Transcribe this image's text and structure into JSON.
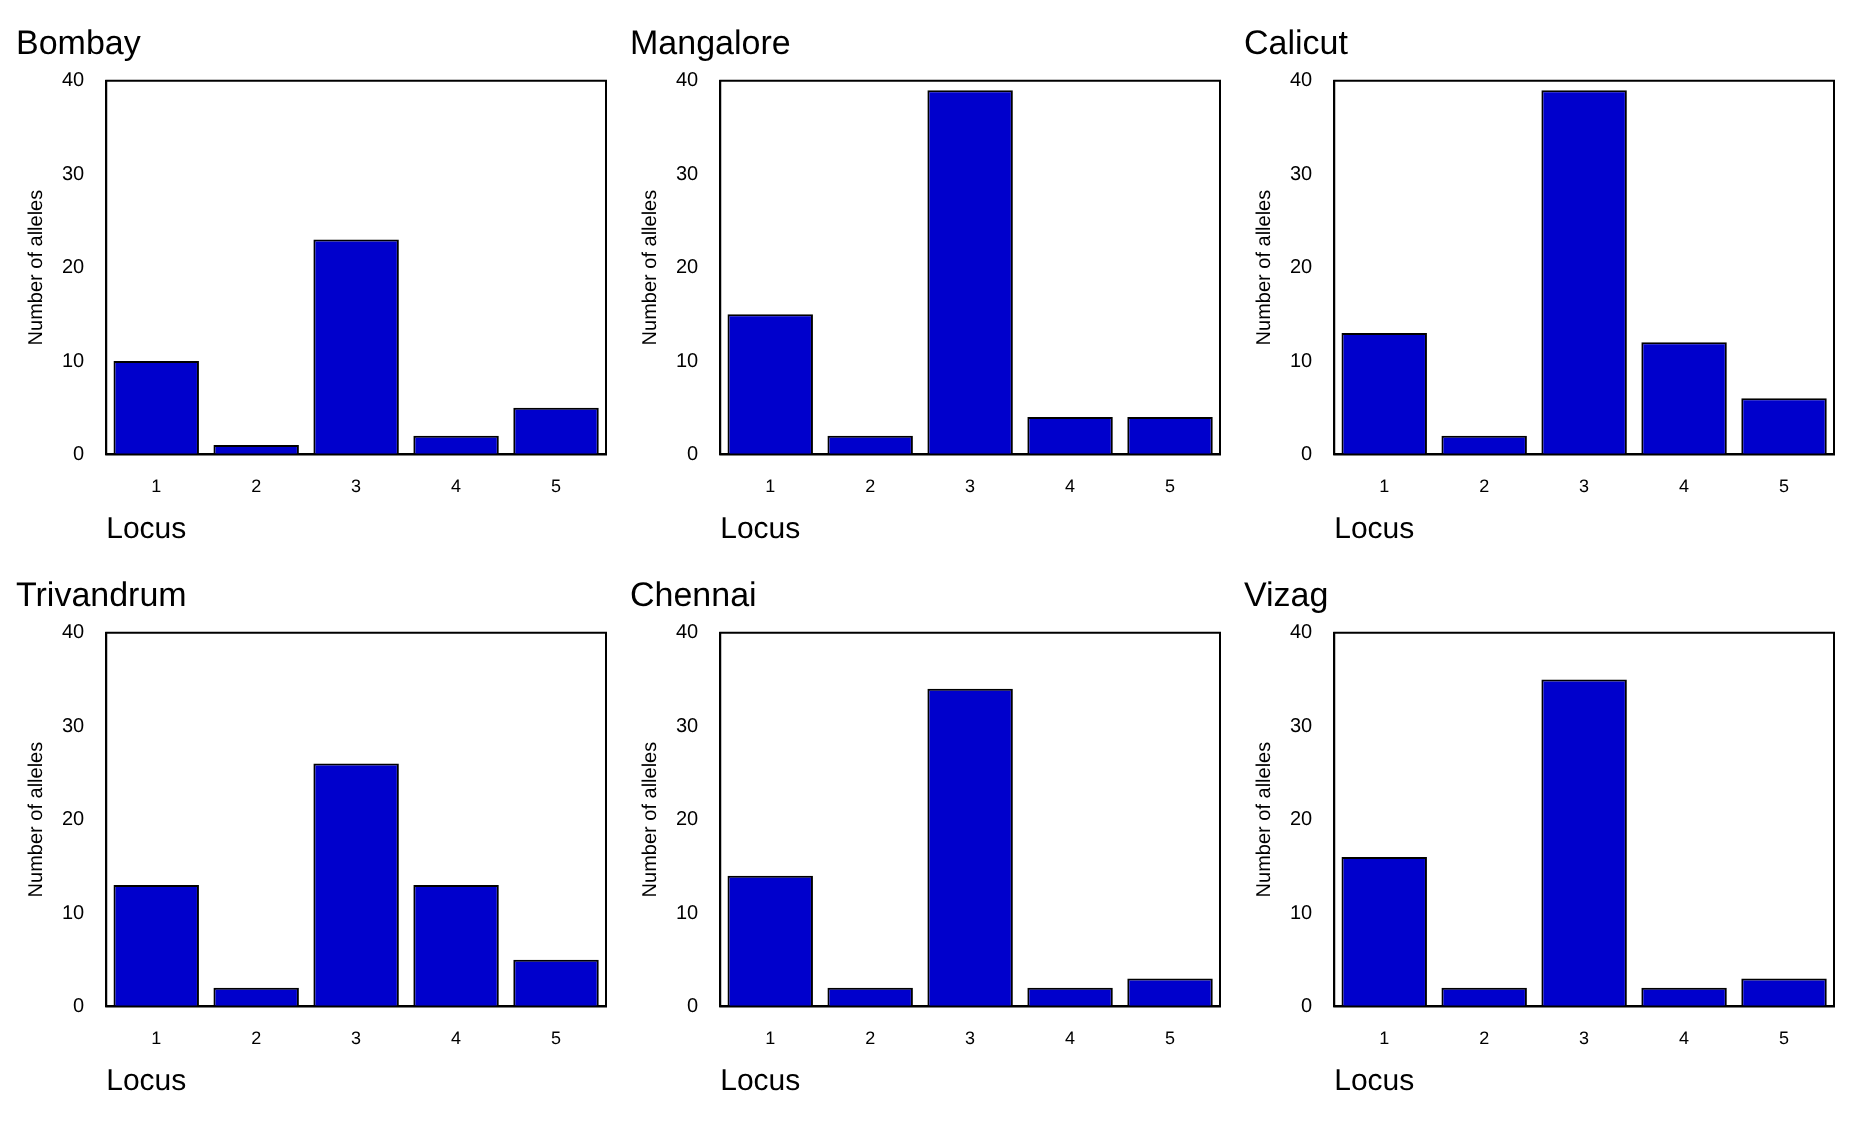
{
  "chart_data": [
    {
      "type": "bar",
      "title": "Bombay",
      "xlabel": "Locus",
      "ylabel": "Number of alleles",
      "categories": [
        "1",
        "2",
        "3",
        "4",
        "5"
      ],
      "values": [
        10,
        1,
        23,
        2,
        5
      ],
      "color": "#0000cc",
      "ylim": [
        0,
        40
      ],
      "yticks": [
        0,
        10,
        20,
        30,
        40
      ]
    },
    {
      "type": "bar",
      "title": "Mangalore",
      "xlabel": "Locus",
      "ylabel": "Number of alleles",
      "categories": [
        "1",
        "2",
        "3",
        "4",
        "5"
      ],
      "values": [
        15,
        2,
        39,
        4,
        4
      ],
      "color": "#0000cc",
      "ylim": [
        0,
        40
      ],
      "yticks": [
        0,
        10,
        20,
        30,
        40
      ]
    },
    {
      "type": "bar",
      "title": "Calicut",
      "xlabel": "Locus",
      "ylabel": "Number of alleles",
      "categories": [
        "1",
        "2",
        "3",
        "4",
        "5"
      ],
      "values": [
        13,
        2,
        39,
        12,
        6
      ],
      "color": "#0000cc",
      "ylim": [
        0,
        40
      ],
      "yticks": [
        0,
        10,
        20,
        30,
        40
      ]
    },
    {
      "type": "bar",
      "title": "Trivandrum",
      "xlabel": "Locus",
      "ylabel": "Number of alleles",
      "categories": [
        "1",
        "2",
        "3",
        "4",
        "5"
      ],
      "values": [
        13,
        2,
        26,
        13,
        5
      ],
      "color": "#0000cc",
      "ylim": [
        0,
        40
      ],
      "yticks": [
        0,
        10,
        20,
        30,
        40
      ]
    },
    {
      "type": "bar",
      "title": "Chennai",
      "xlabel": "Locus",
      "ylabel": "Number of alleles",
      "categories": [
        "1",
        "2",
        "3",
        "4",
        "5"
      ],
      "values": [
        14,
        2,
        34,
        2,
        3
      ],
      "color": "#0000cc",
      "ylim": [
        0,
        40
      ],
      "yticks": [
        0,
        10,
        20,
        30,
        40
      ]
    },
    {
      "type": "bar",
      "title": "Vizag",
      "xlabel": "Locus",
      "ylabel": "Number of alleles",
      "categories": [
        "1",
        "2",
        "3",
        "4",
        "5"
      ],
      "values": [
        16,
        2,
        35,
        2,
        3
      ],
      "color": "#0000cc",
      "ylim": [
        0,
        40
      ],
      "yticks": [
        0,
        10,
        20,
        30,
        40
      ]
    }
  ]
}
